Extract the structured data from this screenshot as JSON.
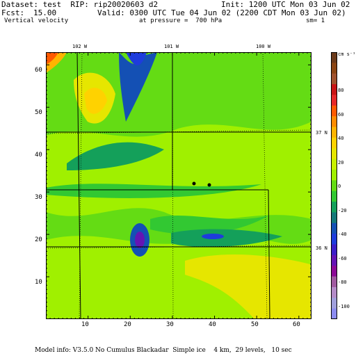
{
  "header": {
    "dataset_line": "Dataset: test  RIP: rip20020603 d2",
    "init_line": "Init: 1200 UTC Mon 03 Jun 02",
    "fcst_label": "Fcst:",
    "fcst_value": "15.00",
    "valid_line": "Valid: 0300 UTC Tue 04 Jun 02 (2200 CDT Mon 03 Jun 02)",
    "field_name": "Vertical velocity",
    "pressure_line": "at pressure =  700 hPa",
    "smoothing": "sm= 1"
  },
  "map": {
    "longitude_labels": [
      "102 W",
      "101 W",
      "100 W"
    ],
    "latitude_labels": [
      "37 N",
      "36 N"
    ],
    "x_ticks": [
      "10",
      "20",
      "30",
      "40",
      "50",
      "60"
    ],
    "y_ticks": [
      "60",
      "50",
      "40",
      "30",
      "20",
      "10"
    ]
  },
  "colorbar": {
    "unit_label": "cm s⁻¹",
    "ticks": [
      "80",
      "60",
      "40",
      "20",
      "0",
      "-20",
      "-40",
      "-60",
      "-80",
      "-100"
    ],
    "colors": [
      "#6b3a1a",
      "#8b4513",
      "#a0522d",
      "#c81414",
      "#e62828",
      "#ff5a00",
      "#ff8c00",
      "#ffb400",
      "#ffd200",
      "#e6e600",
      "#c8f000",
      "#a0f000",
      "#64dc14",
      "#32c832",
      "#14a05a",
      "#147878",
      "#1450b4",
      "#1e3cdc",
      "#3c1ec8",
      "#6414b4",
      "#8c0a96",
      "#a05aa0",
      "#b48cc8",
      "#a0a0dc",
      "#8c8cf0"
    ]
  },
  "footer": {
    "model_info": "Model info: V3.5.0 No Cumulus Blackadar  Simple ice    4 km,  29 levels,   10 sec"
  }
}
